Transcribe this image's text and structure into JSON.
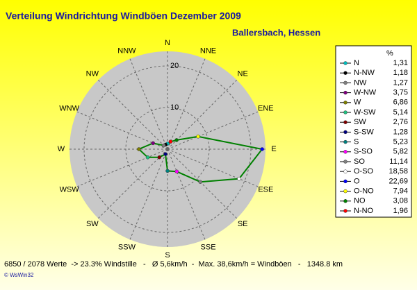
{
  "chart_data": {
    "type": "radar",
    "title": "Verteilung Windrichtung Windböen  Dezember 2009",
    "subtitle": "Ballersbach, Hessen",
    "angular_direction": "counterclockwise",
    "categories": [
      "N",
      "NNW",
      "NW",
      "WNW",
      "W",
      "WSW",
      "SW",
      "SSW",
      "S",
      "SSE",
      "SE",
      "ESE",
      "E",
      "ENE",
      "NE",
      "NNE"
    ],
    "legend_title": "%",
    "legend_names": [
      "N",
      "N-NW",
      "NW",
      "W-NW",
      "W",
      "W-SW",
      "SW",
      "S-SW",
      "S",
      "S-SO",
      "SO",
      "O-SO",
      "O",
      "O-NO",
      "NO",
      "N-NO"
    ],
    "colors": [
      "#00c0c0",
      "#000000",
      "#808080",
      "#800080",
      "#808000",
      "#20c080",
      "#800000",
      "#000080",
      "#008080",
      "#ff00ff",
      "#808080",
      "#ffffff",
      "#0000ff",
      "#ffff00",
      "#008000",
      "#ff0000"
    ],
    "values": [
      1.31,
      1.18,
      1.27,
      3.75,
      6.86,
      5.14,
      2.76,
      1.28,
      5.23,
      5.82,
      11.14,
      18.58,
      22.69,
      7.94,
      3.08,
      1.96
    ],
    "value_labels": [
      "1,31",
      "1,18",
      "1,27",
      "3,75",
      "6,86",
      "5,14",
      "2,76",
      "1,28",
      "5,23",
      "5,82",
      "11,14",
      "18,58",
      "22,69",
      "7,94",
      "3,08",
      "1,96"
    ],
    "line_color": "#008000",
    "rlim": [
      0,
      23.5
    ],
    "rticks": [
      10,
      20
    ],
    "footer": "6850 / 2078 Werte  -> 23.3% Windstille   -   Ø 5,6km/h  -  Max. 38,6km/h = Windböen   -   1348.8 km",
    "credit": "© WsWin32"
  }
}
